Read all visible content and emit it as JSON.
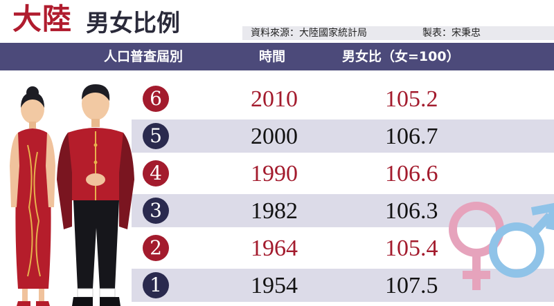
{
  "title": {
    "main": "大陸",
    "sub": "男女比例"
  },
  "meta": {
    "source": "資料來源：大陸國家統計局",
    "maker": "製表：宋秉忠"
  },
  "header": {
    "col1": "人口普查屆別",
    "col2": "時間",
    "col3": "男女比（女=100）"
  },
  "colors": {
    "red": "#a31b2d",
    "navy": "#2a2a4e",
    "header_bg": "#4c4a7a",
    "stripe": "#dcdbe8"
  },
  "icons": [
    "female-figure-icon",
    "male-figure-icon",
    "female-symbol-icon",
    "male-symbol-icon"
  ],
  "chart_data": {
    "type": "table",
    "columns": [
      "人口普查屆別",
      "時間",
      "男女比（女=100）"
    ],
    "rows": [
      {
        "census": "6",
        "year": "2010",
        "ratio": "105.2"
      },
      {
        "census": "5",
        "year": "2000",
        "ratio": "106.7"
      },
      {
        "census": "4",
        "year": "1990",
        "ratio": "106.6"
      },
      {
        "census": "3",
        "year": "1982",
        "ratio": "106.3"
      },
      {
        "census": "2",
        "year": "1964",
        "ratio": "105.4"
      },
      {
        "census": "1",
        "year": "1954",
        "ratio": "107.5"
      }
    ]
  }
}
